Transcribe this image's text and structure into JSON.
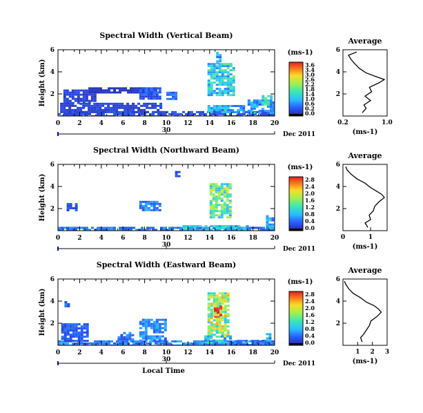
{
  "chart_data": [
    {
      "type": "heatmap",
      "title": "Spectral Width (Vertical Beam)",
      "ylabel": "Height (km)",
      "xlim": [
        0,
        20
      ],
      "ylim": [
        0,
        6
      ],
      "xticks": [
        "0",
        "2",
        "4",
        "6",
        "8",
        "10",
        "12",
        "14",
        "16",
        "18",
        "20"
      ],
      "yticks": [
        "2",
        "4",
        "6"
      ],
      "date_tick": "30",
      "date_label": "Dec 2011",
      "colorbar": {
        "unit": "(ms-1)",
        "ticks": [
          "3.6",
          "3.4",
          "3.0",
          "2.6",
          "2.2",
          "1.8",
          "1.4",
          "1.0",
          "0.6",
          "0.2",
          "0.0"
        ]
      },
      "max_value": 3.6,
      "regions": [
        {
          "x0": 0.0,
          "x1": 20.0,
          "y0": 0.0,
          "y1": 0.45,
          "v": 0.4
        },
        {
          "x0": 0.2,
          "x1": 9.5,
          "y0": 0.4,
          "y1": 1.2,
          "v": 0.3
        },
        {
          "x0": 0.5,
          "x1": 3.5,
          "y0": 1.2,
          "y1": 2.4,
          "v": 0.3
        },
        {
          "x0": 2.8,
          "x1": 9.0,
          "y0": 2.2,
          "y1": 2.6,
          "v": 0.2
        },
        {
          "x0": 7.5,
          "x1": 9.3,
          "y0": 1.5,
          "y1": 2.6,
          "v": 0.5
        },
        {
          "x0": 10.0,
          "x1": 11.0,
          "y0": 1.6,
          "y1": 2.2,
          "v": 0.6
        },
        {
          "x0": 13.8,
          "x1": 16.0,
          "y0": 0.3,
          "y1": 1.0,
          "v": 1.0
        },
        {
          "x0": 13.8,
          "x1": 16.2,
          "y0": 1.8,
          "y1": 4.8,
          "v": 1.3
        },
        {
          "x0": 14.6,
          "x1": 15.0,
          "y0": 4.7,
          "y1": 5.8,
          "v": 1.0
        },
        {
          "x0": 16.0,
          "x1": 17.2,
          "y0": 0.4,
          "y1": 1.0,
          "v": 0.8
        },
        {
          "x0": 17.5,
          "x1": 20.0,
          "y0": 0.2,
          "y1": 1.5,
          "v": 0.9
        },
        {
          "x0": 18.8,
          "x1": 19.6,
          "y0": 1.0,
          "y1": 1.9,
          "v": 1.3
        }
      ],
      "average": {
        "title": "Average",
        "xlabel": "(ms-1)",
        "xlim": [
          0.2,
          1.0
        ],
        "xticks": [
          "0.2",
          "1.0"
        ],
        "yticks": [
          "2",
          "4",
          "6"
        ],
        "profile": [
          {
            "h": 0.3,
            "v": 0.55
          },
          {
            "h": 0.7,
            "v": 0.62
          },
          {
            "h": 1.0,
            "v": 0.58
          },
          {
            "h": 1.4,
            "v": 0.7
          },
          {
            "h": 1.8,
            "v": 0.6
          },
          {
            "h": 2.2,
            "v": 0.72
          },
          {
            "h": 2.6,
            "v": 0.68
          },
          {
            "h": 3.0,
            "v": 0.85
          },
          {
            "h": 3.3,
            "v": 0.95
          },
          {
            "h": 3.6,
            "v": 0.78
          },
          {
            "h": 3.9,
            "v": 0.62
          },
          {
            "h": 4.3,
            "v": 0.5
          },
          {
            "h": 4.7,
            "v": 0.42
          },
          {
            "h": 5.1,
            "v": 0.35
          },
          {
            "h": 5.5,
            "v": 0.3
          },
          {
            "h": 5.8,
            "v": 0.45
          }
        ]
      }
    },
    {
      "type": "heatmap",
      "title": "Spectral Width (Northward Beam)",
      "ylabel": "Height (km)",
      "xlim": [
        0,
        20
      ],
      "ylim": [
        0,
        6
      ],
      "xticks": [
        "0",
        "2",
        "4",
        "6",
        "8",
        "10",
        "12",
        "14",
        "16",
        "18",
        "20"
      ],
      "yticks": [
        "2",
        "4",
        "6"
      ],
      "date_tick": "30",
      "date_label": "Dec 2011",
      "colorbar": {
        "unit": "(ms-1)",
        "ticks": [
          "2.8",
          "2.4",
          "2.0",
          "1.6",
          "1.2",
          "0.8",
          "0.4",
          "0.0"
        ]
      },
      "max_value": 2.8,
      "regions": [
        {
          "x0": 0.0,
          "x1": 20.0,
          "y0": 0.0,
          "y1": 0.35,
          "v": 0.5
        },
        {
          "x0": 0.8,
          "x1": 1.6,
          "y0": 1.8,
          "y1": 2.5,
          "v": 0.4
        },
        {
          "x0": 7.5,
          "x1": 9.5,
          "y0": 1.8,
          "y1": 2.7,
          "v": 0.6
        },
        {
          "x0": 14.0,
          "x1": 16.0,
          "y0": 1.2,
          "y1": 4.3,
          "v": 1.4
        },
        {
          "x0": 11.5,
          "x1": 17.5,
          "y0": 0.1,
          "y1": 0.5,
          "v": 0.9
        },
        {
          "x0": 19.2,
          "x1": 20.0,
          "y0": 0.2,
          "y1": 1.4,
          "v": 0.8
        },
        {
          "x0": 10.8,
          "x1": 11.2,
          "y0": 5.0,
          "y1": 5.4,
          "v": 0.3
        }
      ],
      "average": {
        "title": "Average",
        "xlabel": "(ms-1)",
        "xlim": [
          0,
          1.6
        ],
        "xticks": [
          "0",
          "1"
        ],
        "yticks": [
          "2",
          "4",
          "6"
        ],
        "profile": [
          {
            "h": 0.3,
            "v": 0.9
          },
          {
            "h": 0.7,
            "v": 0.8
          },
          {
            "h": 1.0,
            "v": 1.0
          },
          {
            "h": 1.4,
            "v": 0.95
          },
          {
            "h": 1.8,
            "v": 1.1
          },
          {
            "h": 2.2,
            "v": 1.15
          },
          {
            "h": 2.6,
            "v": 1.3
          },
          {
            "h": 3.0,
            "v": 1.5
          },
          {
            "h": 3.3,
            "v": 1.4
          },
          {
            "h": 3.6,
            "v": 1.2
          },
          {
            "h": 3.9,
            "v": 1.0
          },
          {
            "h": 4.3,
            "v": 0.8
          },
          {
            "h": 4.7,
            "v": 0.5
          },
          {
            "h": 5.1,
            "v": 0.3
          },
          {
            "h": 5.5,
            "v": 0.15
          },
          {
            "h": 5.8,
            "v": 0.1
          }
        ]
      }
    },
    {
      "type": "heatmap",
      "title": "Spectral Width (Eastward Beam)",
      "ylabel": "Height (km)",
      "xlabel": "Local Time",
      "xlim": [
        0,
        20
      ],
      "ylim": [
        0,
        6
      ],
      "xticks": [
        "0",
        "2",
        "4",
        "6",
        "8",
        "10",
        "12",
        "14",
        "16",
        "18",
        "20"
      ],
      "yticks": [
        "2",
        "4",
        "6"
      ],
      "date_tick": "30",
      "date_label": "Dec 2011",
      "colorbar": {
        "unit": "(ms-1)",
        "ticks": [
          "2.8",
          "2.4",
          "2.0",
          "1.6",
          "1.2",
          "0.8",
          "0.4",
          "0.0"
        ]
      },
      "max_value": 2.8,
      "regions": [
        {
          "x0": 0.0,
          "x1": 20.0,
          "y0": 0.0,
          "y1": 0.45,
          "v": 0.6
        },
        {
          "x0": 0.3,
          "x1": 2.8,
          "y0": 0.4,
          "y1": 2.0,
          "v": 0.4
        },
        {
          "x0": 0.6,
          "x1": 1.0,
          "y0": 3.6,
          "y1": 4.0,
          "v": 0.5
        },
        {
          "x0": 5.5,
          "x1": 7.0,
          "y0": 0.4,
          "y1": 1.2,
          "v": 0.5
        },
        {
          "x0": 7.5,
          "x1": 10.0,
          "y0": 0.4,
          "y1": 2.4,
          "v": 0.6
        },
        {
          "x0": 13.8,
          "x1": 15.6,
          "y0": 0.8,
          "y1": 4.8,
          "v": 1.6
        },
        {
          "x0": 14.4,
          "x1": 15.0,
          "y0": 2.6,
          "y1": 3.6,
          "v": 2.2
        },
        {
          "x0": 13.5,
          "x1": 15.8,
          "y0": 0.2,
          "y1": 0.9,
          "v": 0.9
        },
        {
          "x0": 16.0,
          "x1": 19.8,
          "y0": 0.1,
          "y1": 0.5,
          "v": 0.5
        },
        {
          "x0": 19.2,
          "x1": 19.6,
          "y0": 0.5,
          "y1": 1.1,
          "v": 0.8
        }
      ],
      "average": {
        "title": "Average",
        "xlabel": "(ms-1)",
        "xlim": [
          0,
          3
        ],
        "xticks": [
          "1",
          "2",
          "3"
        ],
        "yticks": [
          "2",
          "4",
          "6"
        ],
        "profile": [
          {
            "h": 0.3,
            "v": 1.3
          },
          {
            "h": 0.7,
            "v": 1.2
          },
          {
            "h": 1.0,
            "v": 1.4
          },
          {
            "h": 1.4,
            "v": 1.6
          },
          {
            "h": 1.8,
            "v": 1.8
          },
          {
            "h": 2.2,
            "v": 1.9
          },
          {
            "h": 2.6,
            "v": 2.3
          },
          {
            "h": 3.0,
            "v": 2.6
          },
          {
            "h": 3.3,
            "v": 2.4
          },
          {
            "h": 3.6,
            "v": 2.1
          },
          {
            "h": 3.9,
            "v": 1.6
          },
          {
            "h": 4.3,
            "v": 1.2
          },
          {
            "h": 4.7,
            "v": 0.7
          },
          {
            "h": 5.1,
            "v": 0.4
          },
          {
            "h": 5.5,
            "v": 0.2
          },
          {
            "h": 5.8,
            "v": 0.1
          }
        ]
      }
    }
  ]
}
